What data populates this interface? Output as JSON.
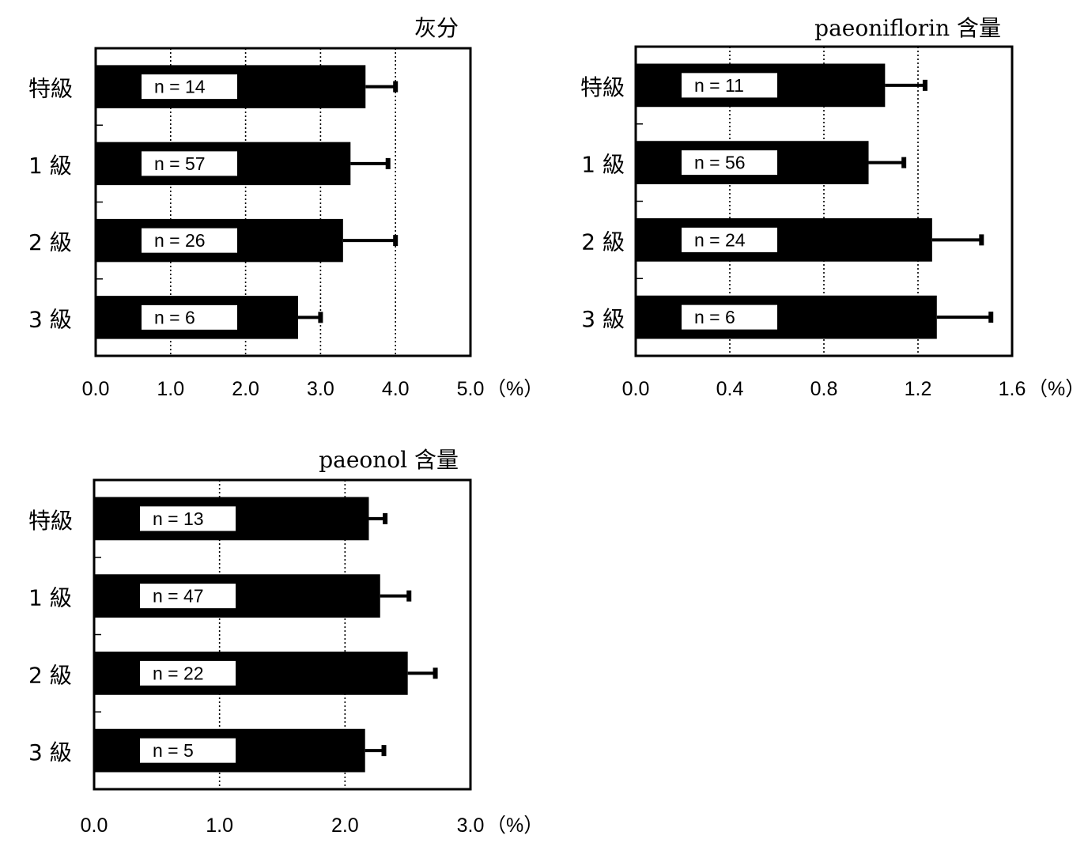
{
  "chart_data": [
    {
      "type": "bar",
      "orientation": "horizontal",
      "title": "灰分",
      "unit": "（%）",
      "categories": [
        "特級",
        "1 級",
        "2 級",
        "3 級"
      ],
      "values": [
        3.6,
        3.4,
        3.3,
        2.7
      ],
      "errors": [
        0.4,
        0.5,
        0.7,
        0.3
      ],
      "n_labels": [
        "n = 14",
        "n = 57",
        "n = 26",
        "n = 6"
      ],
      "xlim": [
        0,
        5
      ],
      "ticks": [
        0,
        1,
        2,
        3,
        4,
        5
      ],
      "tick_labels": [
        "0.0",
        "1.0",
        "2.0",
        "3.0",
        "4.0",
        "5.0"
      ],
      "grid": true,
      "colors": {
        "bar": "#000000",
        "label_box": "#ffffff"
      }
    },
    {
      "type": "bar",
      "orientation": "horizontal",
      "title": "paeoniflorin 含量",
      "unit": "（%）",
      "categories": [
        "特級",
        "1 級",
        "2 級",
        "3 級"
      ],
      "values": [
        1.06,
        0.99,
        1.26,
        1.28
      ],
      "errors": [
        0.17,
        0.15,
        0.21,
        0.23
      ],
      "n_labels": [
        "n = 11",
        "n = 56",
        "n = 24",
        "n = 6"
      ],
      "xlim": [
        0,
        1.6
      ],
      "ticks": [
        0,
        0.4,
        0.8,
        1.2,
        1.6
      ],
      "tick_labels": [
        "0.0",
        "0.4",
        "0.8",
        "1.2",
        "1.6"
      ],
      "grid": true,
      "colors": {
        "bar": "#000000",
        "label_box": "#ffffff"
      }
    },
    {
      "type": "bar",
      "orientation": "horizontal",
      "title": "paeonol 含量",
      "unit": "（%）",
      "categories": [
        "特級",
        "1 級",
        "2 級",
        "3 級"
      ],
      "values": [
        2.19,
        2.28,
        2.5,
        2.16
      ],
      "errors": [
        0.13,
        0.23,
        0.22,
        0.15
      ],
      "n_labels": [
        "n = 13",
        "n = 47",
        "n = 22",
        "n = 5"
      ],
      "xlim": [
        0,
        3
      ],
      "ticks": [
        0,
        1,
        2,
        3
      ],
      "tick_labels": [
        "0.0",
        "1.0",
        "2.0",
        "3.0"
      ],
      "grid": true,
      "colors": {
        "bar": "#000000",
        "label_box": "#ffffff"
      }
    }
  ]
}
